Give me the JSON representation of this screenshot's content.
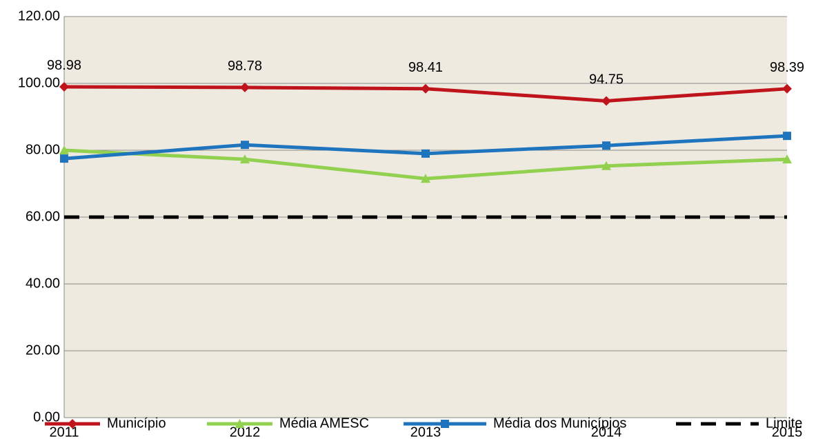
{
  "chart_data": {
    "type": "line",
    "categories": [
      "2011",
      "2012",
      "2013",
      "2014",
      "2015"
    ],
    "series": [
      {
        "name": "Município",
        "color": "#c0141c",
        "marker": "diamond",
        "values": [
          98.98,
          98.78,
          98.41,
          94.75,
          98.39
        ],
        "value_labels": [
          "98.98",
          "98.78",
          "98.41",
          "94.75",
          "98.39"
        ]
      },
      {
        "name": "Média AMESC",
        "color": "#92d050",
        "marker": "triangle",
        "values": [
          80.0,
          77.3,
          71.5,
          75.3,
          77.3
        ]
      },
      {
        "name": "Média dos Municípios",
        "color": "#1f74be",
        "marker": "square",
        "values": [
          77.5,
          81.6,
          79.0,
          81.4,
          84.3
        ]
      },
      {
        "name": "Limite",
        "color": "#000000",
        "dashed": true,
        "values": [
          60,
          60,
          60,
          60,
          60
        ]
      }
    ],
    "ylim": [
      0,
      120
    ],
    "yticks": [
      {
        "value": 0,
        "label": "0.00"
      },
      {
        "value": 20,
        "label": "20.00"
      },
      {
        "value": 40,
        "label": "40.00"
      },
      {
        "value": 60,
        "label": "60.00"
      },
      {
        "value": 80,
        "label": "80.00"
      },
      {
        "value": 100,
        "label": "100.00"
      },
      {
        "value": 120,
        "label": "120.00"
      }
    ],
    "grid": true,
    "legend": "bottom",
    "background": "#eeeae0"
  }
}
